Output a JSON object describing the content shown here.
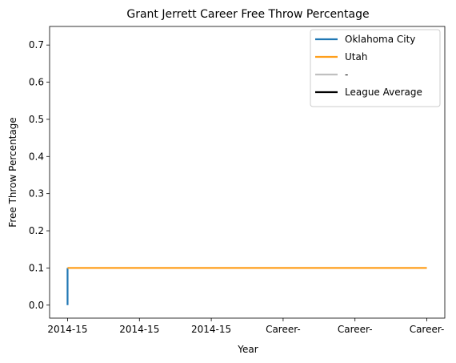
{
  "chart_data": {
    "type": "line",
    "title": "Grant Jerrett Career Free Throw Percentage",
    "xlabel": "Year",
    "ylabel": "Free Throw Percentage",
    "x_tick_labels": [
      "2014-15",
      "2014-15",
      "2014-15",
      "Career-",
      "Career-",
      "Career-"
    ],
    "xlim": [
      -0.1,
      2.1
    ],
    "ylim": [
      -0.035,
      0.75
    ],
    "y_ticks": [
      0.0,
      0.1,
      0.2,
      0.3,
      0.4,
      0.5,
      0.6,
      0.7
    ],
    "y_tick_labels": [
      "0.0",
      "0.1",
      "0.2",
      "0.3",
      "0.4",
      "0.5",
      "0.6",
      "0.7"
    ],
    "series": [
      {
        "name": "Oklahoma City",
        "color": "#1f77b4",
        "x": [
          0,
          0
        ],
        "y": [
          0.0,
          0.1
        ]
      },
      {
        "name": "Utah",
        "color": "#ff9f1c",
        "x": [
          0,
          2
        ],
        "y": [
          0.1,
          0.1
        ]
      },
      {
        "name": "-",
        "color": "#c0c0c0",
        "x": [],
        "y": []
      },
      {
        "name": "League Average",
        "color": "#000000",
        "x": [],
        "y": []
      }
    ],
    "grid": false,
    "legend": "top-right"
  }
}
